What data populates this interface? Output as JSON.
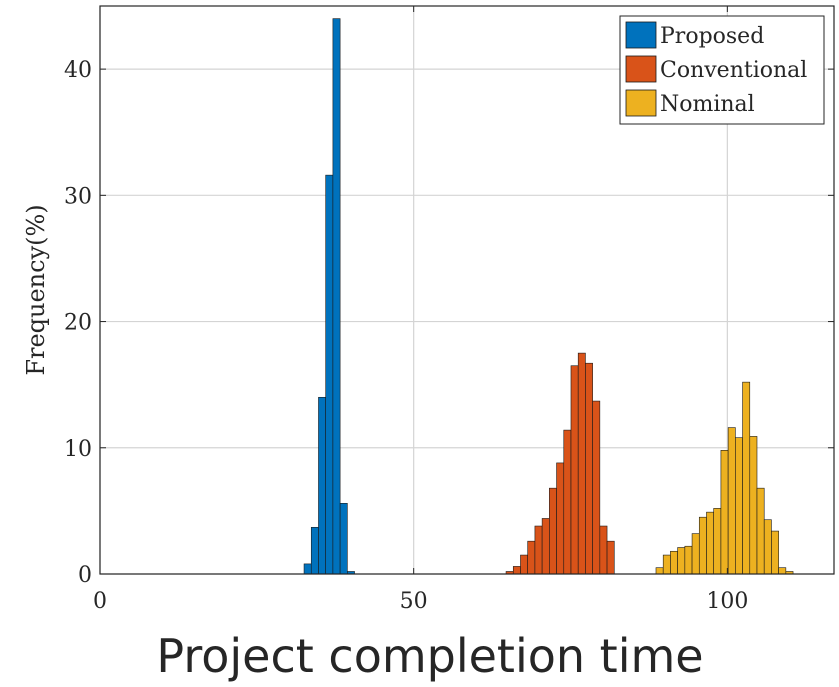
{
  "chart_data": {
    "type": "bar",
    "title": "",
    "xlabel": "Project completion time",
    "ylabel": "Frequency(%)",
    "xlim": [
      0,
      117
    ],
    "ylim": [
      0,
      45
    ],
    "xticks": [
      0,
      50,
      100
    ],
    "yticks": [
      0,
      10,
      20,
      30,
      40
    ],
    "grid": true,
    "legend_position": "top-right",
    "bin_width": 1.15,
    "series": [
      {
        "name": "Proposed",
        "color": "#0072BD",
        "bins": [
          {
            "x": 33.1,
            "y": 0.8
          },
          {
            "x": 34.25,
            "y": 3.7
          },
          {
            "x": 35.4,
            "y": 14.0
          },
          {
            "x": 36.55,
            "y": 31.6
          },
          {
            "x": 37.7,
            "y": 44.0
          },
          {
            "x": 38.85,
            "y": 5.6
          },
          {
            "x": 40.0,
            "y": 0.2
          }
        ]
      },
      {
        "name": "Conventional",
        "color": "#D95319",
        "bins": [
          {
            "x": 65.3,
            "y": 0.2
          },
          {
            "x": 66.45,
            "y": 0.6
          },
          {
            "x": 67.6,
            "y": 1.5
          },
          {
            "x": 68.75,
            "y": 2.6
          },
          {
            "x": 69.9,
            "y": 3.8
          },
          {
            "x": 71.05,
            "y": 4.4
          },
          {
            "x": 72.2,
            "y": 6.8
          },
          {
            "x": 73.35,
            "y": 8.8
          },
          {
            "x": 74.5,
            "y": 11.4
          },
          {
            "x": 75.65,
            "y": 16.5
          },
          {
            "x": 76.8,
            "y": 17.5
          },
          {
            "x": 77.95,
            "y": 16.7
          },
          {
            "x": 79.1,
            "y": 13.7
          },
          {
            "x": 80.25,
            "y": 3.8
          },
          {
            "x": 81.4,
            "y": 2.6
          }
        ]
      },
      {
        "name": "Nominal",
        "color": "#EDB120",
        "bins": [
          {
            "x": 89.2,
            "y": 0.5
          },
          {
            "x": 90.35,
            "y": 1.5
          },
          {
            "x": 91.5,
            "y": 1.8
          },
          {
            "x": 92.65,
            "y": 2.1
          },
          {
            "x": 93.8,
            "y": 2.2
          },
          {
            "x": 94.95,
            "y": 3.2
          },
          {
            "x": 96.1,
            "y": 4.5
          },
          {
            "x": 97.25,
            "y": 4.9
          },
          {
            "x": 98.4,
            "y": 5.2
          },
          {
            "x": 99.55,
            "y": 9.8
          },
          {
            "x": 100.7,
            "y": 11.6
          },
          {
            "x": 101.85,
            "y": 10.8
          },
          {
            "x": 103.0,
            "y": 15.2
          },
          {
            "x": 104.15,
            "y": 10.9
          },
          {
            "x": 105.3,
            "y": 6.8
          },
          {
            "x": 106.45,
            "y": 4.3
          },
          {
            "x": 107.6,
            "y": 3.4
          },
          {
            "x": 108.75,
            "y": 0.5
          },
          {
            "x": 109.9,
            "y": 0.2
          }
        ]
      }
    ]
  }
}
